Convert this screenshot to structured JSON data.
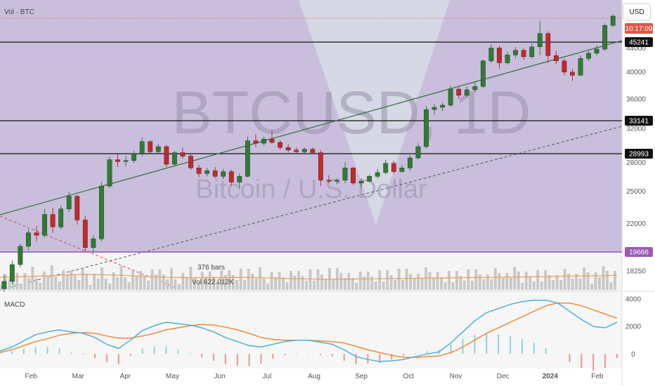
{
  "header": {
    "symbol_label": "Vol · BTC"
  },
  "currency_button": "USD",
  "watermark": {
    "title": "BTCUSD, 1D",
    "subtitle": "Bitcoin / U.S. Dollar"
  },
  "colors": {
    "up": "#2e7d32",
    "down": "#c62828",
    "price_bg": "#c9bfdd",
    "trend_line": "#3f6f4a",
    "macd_line": "#4fb0d8",
    "signal_line": "#f08a3c",
    "hist_pos": "#8fd0dd",
    "hist_neg": "#e39a8c",
    "highlight": "#9b59b6",
    "current_price": "#e05545"
  },
  "chart_data": {
    "type": "candlestick",
    "main": {
      "y_ticks": [
        "44000",
        "40000",
        "36000",
        "32000",
        "28000",
        "25000",
        "22000",
        "18250"
      ],
      "horizontal_levels": [
        "45241",
        "33141",
        "28993",
        "19666"
      ],
      "current_price_label": "10:17:09",
      "annotations": [
        "376 bars",
        "Vol 622.012K"
      ],
      "candles": [
        [
          17000,
          18000,
          16800,
          17500
        ],
        [
          17500,
          19000,
          17300,
          18700
        ],
        [
          18700,
          20300,
          18500,
          20100
        ],
        [
          20100,
          21500,
          19800,
          21200
        ],
        [
          21200,
          21800,
          20500,
          21000
        ],
        [
          21000,
          23300,
          20800,
          22800
        ],
        [
          22800,
          23400,
          21200,
          21700
        ],
        [
          21700,
          23600,
          21500,
          23300
        ],
        [
          23300,
          24900,
          23000,
          24500
        ],
        [
          24500,
          24600,
          21900,
          22300
        ],
        [
          22300,
          22700,
          19700,
          20000
        ],
        [
          20000,
          21000,
          19600,
          20700
        ],
        [
          20700,
          25900,
          20500,
          25500
        ],
        [
          25500,
          28600,
          25300,
          28300
        ],
        [
          28300,
          28900,
          27500,
          28100
        ],
        [
          28100,
          28700,
          27600,
          28200
        ],
        [
          28200,
          29300,
          27900,
          29000
        ],
        [
          29000,
          30900,
          28700,
          30400
        ],
        [
          30400,
          30500,
          29000,
          29200
        ],
        [
          29200,
          30100,
          28900,
          29800
        ],
        [
          29800,
          30000,
          27500,
          27800
        ],
        [
          27800,
          29300,
          27600,
          29100
        ],
        [
          29100,
          29700,
          28400,
          28700
        ],
        [
          28700,
          29000,
          27200,
          27400
        ],
        [
          27400,
          27700,
          26400,
          26800
        ],
        [
          26800,
          27400,
          26500,
          27100
        ],
        [
          27100,
          27500,
          26300,
          26500
        ],
        [
          26500,
          27300,
          26200,
          27000
        ],
        [
          27000,
          27200,
          25500,
          25900
        ],
        [
          25900,
          26800,
          25200,
          26500
        ],
        [
          26500,
          31000,
          26400,
          30500
        ],
        [
          30500,
          31300,
          29800,
          30200
        ],
        [
          30200,
          31000,
          29900,
          30700
        ],
        [
          30700,
          31800,
          30100,
          30300
        ],
        [
          30300,
          30600,
          29400,
          29700
        ],
        [
          29700,
          30100,
          29100,
          29400
        ],
        [
          29400,
          29700,
          28900,
          29200
        ],
        [
          29200,
          29700,
          29000,
          29500
        ],
        [
          29500,
          29700,
          28900,
          29100
        ],
        [
          29100,
          29400,
          25500,
          26100
        ],
        [
          26100,
          26600,
          25800,
          26000
        ],
        [
          26000,
          26300,
          25700,
          26100
        ],
        [
          26100,
          28000,
          25800,
          27400
        ],
        [
          27400,
          27500,
          25600,
          25800
        ],
        [
          25800,
          26300,
          25400,
          26000
        ],
        [
          26000,
          26700,
          25900,
          26500
        ],
        [
          26500,
          27300,
          26300,
          26900
        ],
        [
          26900,
          28300,
          26700,
          27900
        ],
        [
          27900,
          28200,
          26800,
          27000
        ],
        [
          27000,
          27700,
          26900,
          27400
        ],
        [
          27400,
          28800,
          27100,
          28500
        ],
        [
          28500,
          30200,
          28300,
          29800
        ],
        [
          29800,
          35000,
          29600,
          34500
        ],
        [
          34500,
          35300,
          33800,
          34800
        ],
        [
          34800,
          35500,
          34300,
          35100
        ],
        [
          35100,
          37900,
          34900,
          37400
        ],
        [
          37400,
          37800,
          36000,
          36500
        ],
        [
          36500,
          37800,
          36200,
          37300
        ],
        [
          37300,
          38500,
          36900,
          37800
        ],
        [
          37800,
          42000,
          37600,
          41800
        ],
        [
          41800,
          44600,
          41500,
          44000
        ],
        [
          44000,
          44400,
          40500,
          41500
        ],
        [
          41500,
          43300,
          41200,
          42800
        ],
        [
          42800,
          44200,
          42300,
          43600
        ],
        [
          43600,
          44000,
          42000,
          42500
        ],
        [
          42500,
          44800,
          42200,
          44200
        ],
        [
          44200,
          48900,
          42800,
          46600
        ],
        [
          46600,
          47000,
          41500,
          42700
        ],
        [
          42700,
          43500,
          41300,
          41800
        ],
        [
          41800,
          42200,
          39500,
          40000
        ],
        [
          40000,
          40500,
          38600,
          39500
        ],
        [
          39500,
          42700,
          39400,
          42200
        ],
        [
          42200,
          43500,
          41800,
          43100
        ],
        [
          43100,
          44500,
          42700,
          43800
        ],
        [
          43800,
          48500,
          43500,
          48100
        ],
        [
          48100,
          50300,
          47800,
          49900
        ]
      ]
    },
    "volume": {
      "ma_line": [
        0.5,
        0.55,
        0.62,
        0.58,
        0.5,
        0.48,
        0.5,
        0.45,
        0.42,
        0.44,
        0.46,
        0.48,
        0.5,
        0.52,
        0.55,
        0.58
      ]
    },
    "macd": {
      "label": "MACD",
      "y_ticks": [
        "4000",
        "2000",
        "0"
      ],
      "ylim": [
        -800,
        4300
      ],
      "macd": [
        200,
        500,
        950,
        1400,
        1600,
        1750,
        1600,
        1500,
        1200,
        700,
        400,
        1000,
        1700,
        2050,
        2300,
        2200,
        2100,
        1900,
        1600,
        1200,
        900,
        600,
        500,
        700,
        900,
        1000,
        1000,
        850,
        700,
        300,
        -200,
        -400,
        -550,
        -500,
        -400,
        -200,
        0,
        150,
        800,
        1600,
        2400,
        3000,
        3300,
        3600,
        3800,
        3900,
        3900,
        3700,
        3100,
        2500,
        2000,
        1900,
        2300
      ],
      "signal": [
        100,
        300,
        600,
        900,
        1100,
        1350,
        1500,
        1550,
        1500,
        1300,
        1150,
        1150,
        1300,
        1500,
        1750,
        1900,
        2050,
        2150,
        2100,
        1950,
        1750,
        1500,
        1200,
        1050,
        1000,
        1000,
        1000,
        950,
        900,
        800,
        550,
        300,
        100,
        -100,
        -250,
        -250,
        -200,
        -150,
        100,
        500,
        1000,
        1500,
        1900,
        2300,
        2700,
        3100,
        3500,
        3700,
        3700,
        3500,
        3200,
        2900,
        2600
      ],
      "x_labels": [
        "Feb",
        "Mar",
        "Apr",
        "May",
        "Jun",
        "Jul",
        "Aug",
        "Sep",
        "Oct",
        "Nov",
        "Dec",
        "2024",
        "Feb"
      ]
    }
  }
}
